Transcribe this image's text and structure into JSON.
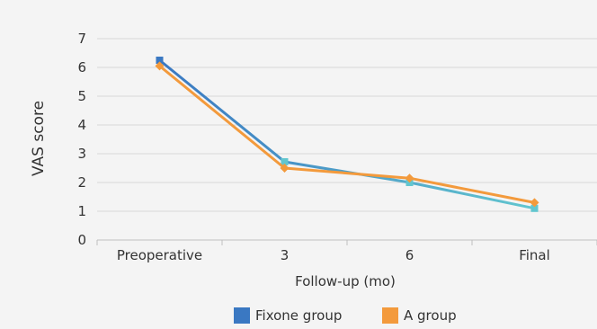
{
  "chart_data": {
    "type": "line",
    "categories": [
      "Preoperative",
      "3",
      "6",
      "Final"
    ],
    "series": [
      {
        "name": "Fixone group",
        "values": [
          6.25,
          2.72,
          2.0,
          1.1
        ],
        "color": "#3a78c2",
        "color2": "#62c6cf",
        "marker": "square"
      },
      {
        "name": "A group",
        "values": [
          6.05,
          2.5,
          2.15,
          1.3
        ],
        "color": "#f39a3c",
        "marker": "diamond"
      }
    ],
    "y_ticks": [
      "0",
      "1",
      "2",
      "3",
      "4",
      "5",
      "6",
      "7"
    ],
    "ylim": [
      0,
      7
    ],
    "xlabel": "Follow-up (mo)",
    "ylabel": "VAS score",
    "grid": true,
    "legend": "bottom"
  }
}
